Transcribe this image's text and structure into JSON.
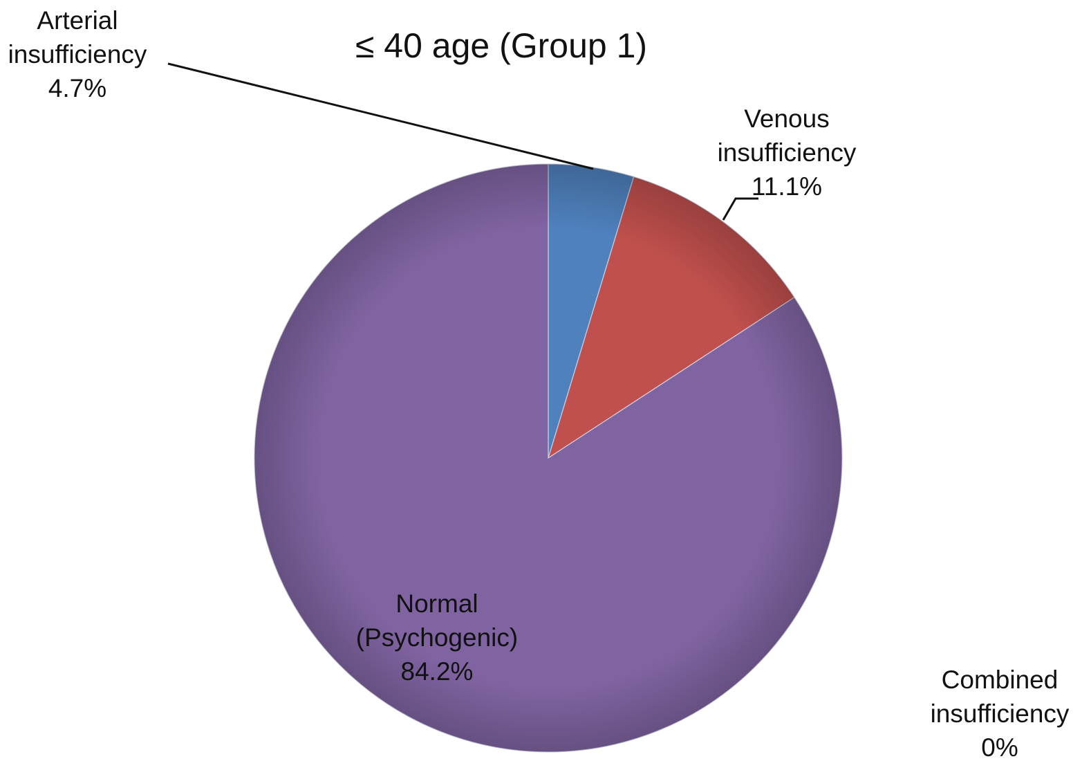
{
  "chart_data": {
    "type": "pie",
    "title": "≤ 40 age (Group 1)",
    "slices": [
      {
        "label": "Arterial insufficiency",
        "label_lines": [
          "Arterial",
          "insufficiency"
        ],
        "value_text": "4.7%",
        "value": 4.7,
        "color": "#4f81bd"
      },
      {
        "label": "Venous insufficiency",
        "label_lines": [
          "Venous",
          "insufficiency"
        ],
        "value_text": "11.1%",
        "value": 11.1,
        "color": "#c0504d"
      },
      {
        "label": "Combined insufficiency",
        "label_lines": [
          "Combined",
          "insufficiency"
        ],
        "value_text": "0%",
        "value": 0,
        "color": "#9bbb59"
      },
      {
        "label": "Normal (Psychogenic)",
        "label_lines": [
          "Normal",
          "(Psychogenic)"
        ],
        "value_text": "84.2%",
        "value": 84.2,
        "color": "#8064a2"
      }
    ],
    "legend": "none"
  }
}
